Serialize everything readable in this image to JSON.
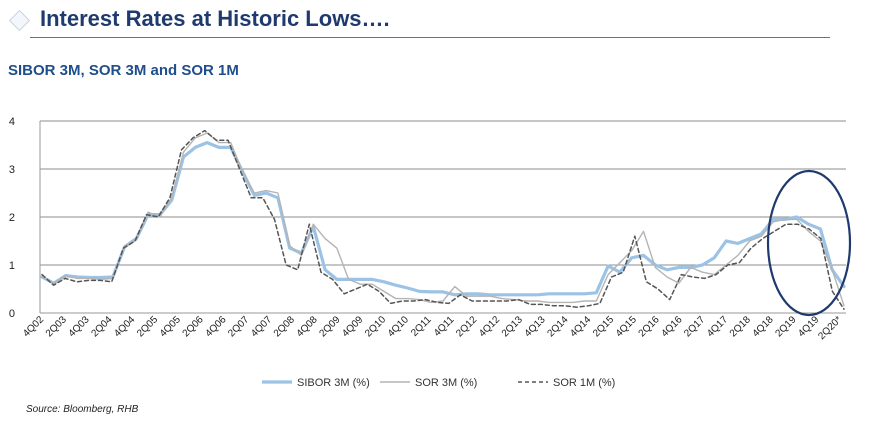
{
  "header": {
    "title": "Interest Rates at Historic Lows….",
    "subtitle": "SIBOR 3M, SOR 3M and SOR 1M"
  },
  "source": "Source: Bloomberg, RHB",
  "colors": {
    "title": "#1f3a6e",
    "subtitle": "#1f4e8c",
    "sibor": "#9cc3e6",
    "sor3m": "#b4b4b4",
    "sor1m": "#555555",
    "highlight_ellipse": "#1f3a6e"
  },
  "chart_data": {
    "type": "line",
    "ylim": [
      0,
      4
    ],
    "yticks": [
      "0",
      "1",
      "2",
      "3",
      "4"
    ],
    "grid": true,
    "legend_position": "bottom",
    "xticks": [
      "4Q02",
      "2Q03",
      "4Q03",
      "2Q04",
      "4Q04",
      "2Q05",
      "4Q05",
      "2Q06",
      "4Q06",
      "2Q07",
      "4Q07",
      "2Q08",
      "4Q08",
      "2Q09",
      "4Q09",
      "2Q10",
      "4Q10",
      "2Q11",
      "4Q11",
      "2Q12",
      "4Q12",
      "2Q13",
      "4Q13",
      "2Q14",
      "4Q14",
      "2Q15",
      "4Q15",
      "2Q16",
      "4Q16",
      "2Q17",
      "4Q17",
      "2Q18",
      "4Q18",
      "2Q19",
      "4Q19",
      "2Q20*"
    ],
    "series": [
      {
        "name": "SIBOR 3M (%)",
        "style": "solid-thick",
        "values": [
          0.75,
          0.62,
          0.78,
          0.75,
          0.74,
          0.74,
          0.75,
          1.38,
          1.55,
          2.05,
          2.05,
          2.35,
          3.25,
          3.45,
          3.55,
          3.45,
          3.45,
          2.95,
          2.45,
          2.5,
          2.4,
          1.35,
          1.25,
          1.8,
          0.9,
          0.7,
          0.7,
          0.7,
          0.7,
          0.65,
          0.58,
          0.52,
          0.45,
          0.44,
          0.44,
          0.38,
          0.4,
          0.4,
          0.38,
          0.38,
          0.38,
          0.38,
          0.38,
          0.4,
          0.4,
          0.4,
          0.4,
          0.42,
          0.98,
          0.85,
          1.15,
          1.2,
          1.0,
          0.9,
          0.95,
          0.95,
          1.0,
          1.15,
          1.5,
          1.45,
          1.55,
          1.65,
          1.95,
          1.95,
          2.0,
          1.85,
          1.75,
          0.9,
          0.55
        ]
      },
      {
        "name": "SOR 3M (%)",
        "style": "solid-thin",
        "values": [
          0.75,
          0.62,
          0.78,
          0.72,
          0.72,
          0.7,
          0.72,
          1.4,
          1.52,
          2.1,
          2.0,
          2.4,
          3.35,
          3.65,
          3.75,
          3.55,
          3.55,
          2.95,
          2.5,
          2.55,
          2.5,
          1.4,
          1.2,
          1.85,
          1.55,
          1.35,
          0.7,
          0.6,
          0.6,
          0.45,
          0.3,
          0.3,
          0.28,
          0.22,
          0.25,
          0.55,
          0.35,
          0.35,
          0.35,
          0.3,
          0.28,
          0.25,
          0.25,
          0.22,
          0.22,
          0.22,
          0.25,
          0.25,
          0.8,
          1.05,
          1.3,
          1.7,
          0.95,
          0.75,
          0.62,
          0.95,
          0.85,
          0.8,
          1.0,
          1.2,
          1.5,
          1.6,
          1.9,
          1.95,
          1.95,
          1.7,
          1.5,
          0.9,
          0.15
        ]
      },
      {
        "name": "SOR 1M (%)",
        "style": "dashed",
        "values": [
          0.8,
          0.58,
          0.72,
          0.65,
          0.68,
          0.68,
          0.65,
          1.35,
          1.5,
          2.05,
          2.0,
          2.4,
          3.4,
          3.65,
          3.8,
          3.6,
          3.6,
          3.0,
          2.4,
          2.4,
          1.95,
          1.0,
          0.9,
          1.85,
          0.85,
          0.7,
          0.4,
          0.5,
          0.6,
          0.45,
          0.2,
          0.25,
          0.25,
          0.28,
          0.22,
          0.2,
          0.38,
          0.25,
          0.25,
          0.25,
          0.25,
          0.28,
          0.18,
          0.18,
          0.15,
          0.15,
          0.12,
          0.15,
          0.2,
          0.75,
          0.85,
          1.6,
          0.65,
          0.5,
          0.28,
          0.8,
          0.75,
          0.72,
          0.8,
          1.0,
          1.05,
          1.35,
          1.55,
          1.7,
          1.85,
          1.85,
          1.75,
          1.55,
          0.45,
          0.08
        ]
      }
    ]
  }
}
